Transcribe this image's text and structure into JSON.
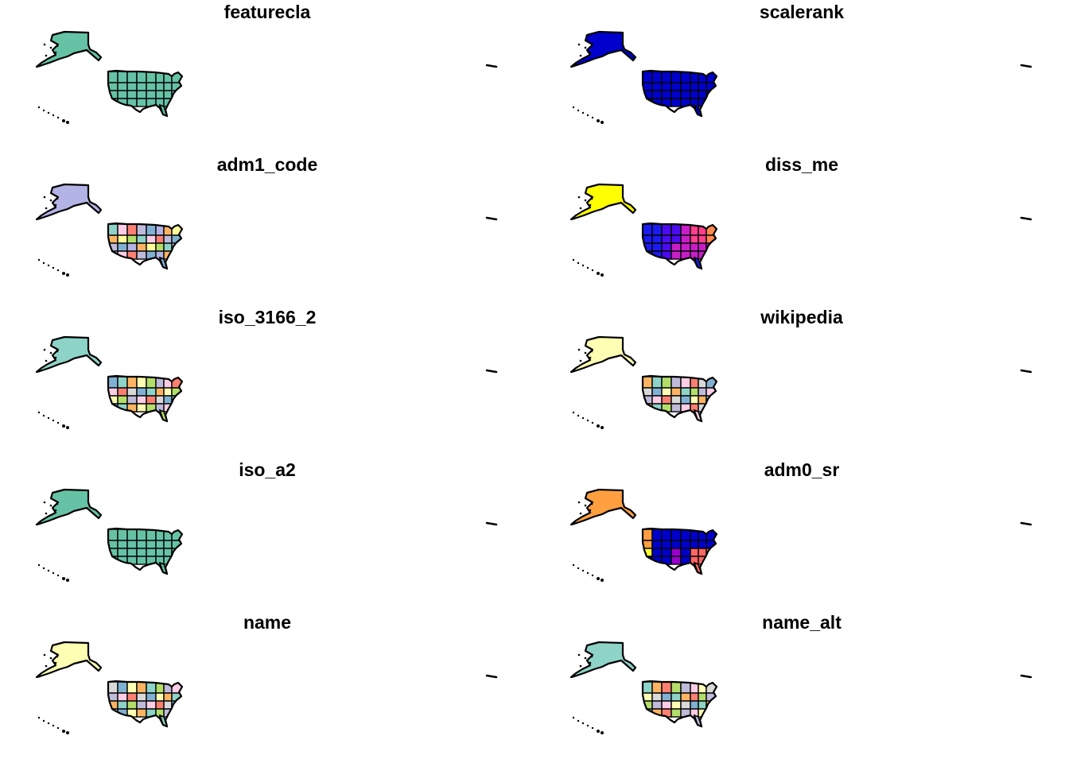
{
  "map_panels": [
    {
      "title": "featurecla",
      "scheme": "single",
      "colors": [
        "#66C2A5"
      ],
      "alaska": "#66C2A5"
    },
    {
      "title": "scalerank",
      "scheme": "single",
      "colors": [
        "#0000CD"
      ],
      "alaska": "#0000CD"
    },
    {
      "title": "adm1_code",
      "scheme": "mosaic",
      "colors": [
        "#B3B3E6",
        "#FFFF99",
        "#8DD3C7",
        "#FB8072",
        "#80B1D3",
        "#FDB462",
        "#B3DE69",
        "#FCCDE5",
        "#BEBADA"
      ],
      "alaska": "#B3B3E6"
    },
    {
      "title": "diss_me",
      "scheme": "gradient",
      "colors": [
        "#1A1AF0",
        "#4B0AF0",
        "#C81EC8",
        "#FF3F8A",
        "#FF8A50"
      ],
      "alaska": "#FFFF00"
    },
    {
      "title": "iso_3166_2",
      "scheme": "mosaic",
      "colors": [
        "#8DD3C7",
        "#FFFFB3",
        "#BEBADA",
        "#FB8072",
        "#80B1D3",
        "#FDB462",
        "#B3DE69",
        "#FCCDE5",
        "#D9D9D9"
      ],
      "alaska": "#8DD3C7"
    },
    {
      "title": "wikipedia",
      "scheme": "mosaic",
      "colors": [
        "#FFFFB3",
        "#8DD3C7",
        "#BEBADA",
        "#FB8072",
        "#80B1D3",
        "#FDB462",
        "#B3DE69",
        "#FCCDE5",
        "#D9D9D9"
      ],
      "alaska": "#FFFFB3"
    },
    {
      "title": "iso_a2",
      "scheme": "single",
      "colors": [
        "#66C2A5"
      ],
      "alaska": "#66C2A5"
    },
    {
      "title": "adm0_sr",
      "scheme": "adm0",
      "colors": [
        "#0000CD",
        "#FF9F40",
        "#FFFF33",
        "#9900CC",
        "#FF6666"
      ],
      "alaska": "#FF9F40"
    },
    {
      "title": "name",
      "scheme": "mosaic",
      "colors": [
        "#FFFFB3",
        "#8DD3C7",
        "#BEBADA",
        "#FB8072",
        "#80B1D3",
        "#FDB462",
        "#B3DE69",
        "#FCCDE5",
        "#D9D9D9"
      ],
      "alaska": "#FFFFB3"
    },
    {
      "title": "name_alt",
      "scheme": "mosaic",
      "colors": [
        "#8DD3C7",
        "#FB8072",
        "#BEBADA",
        "#FFFFB3",
        "#80B1D3",
        "#FDB462",
        "#B3DE69",
        "#FCCDE5",
        "#D9D9D9"
      ],
      "alaska": "#8DD3C7"
    }
  ]
}
